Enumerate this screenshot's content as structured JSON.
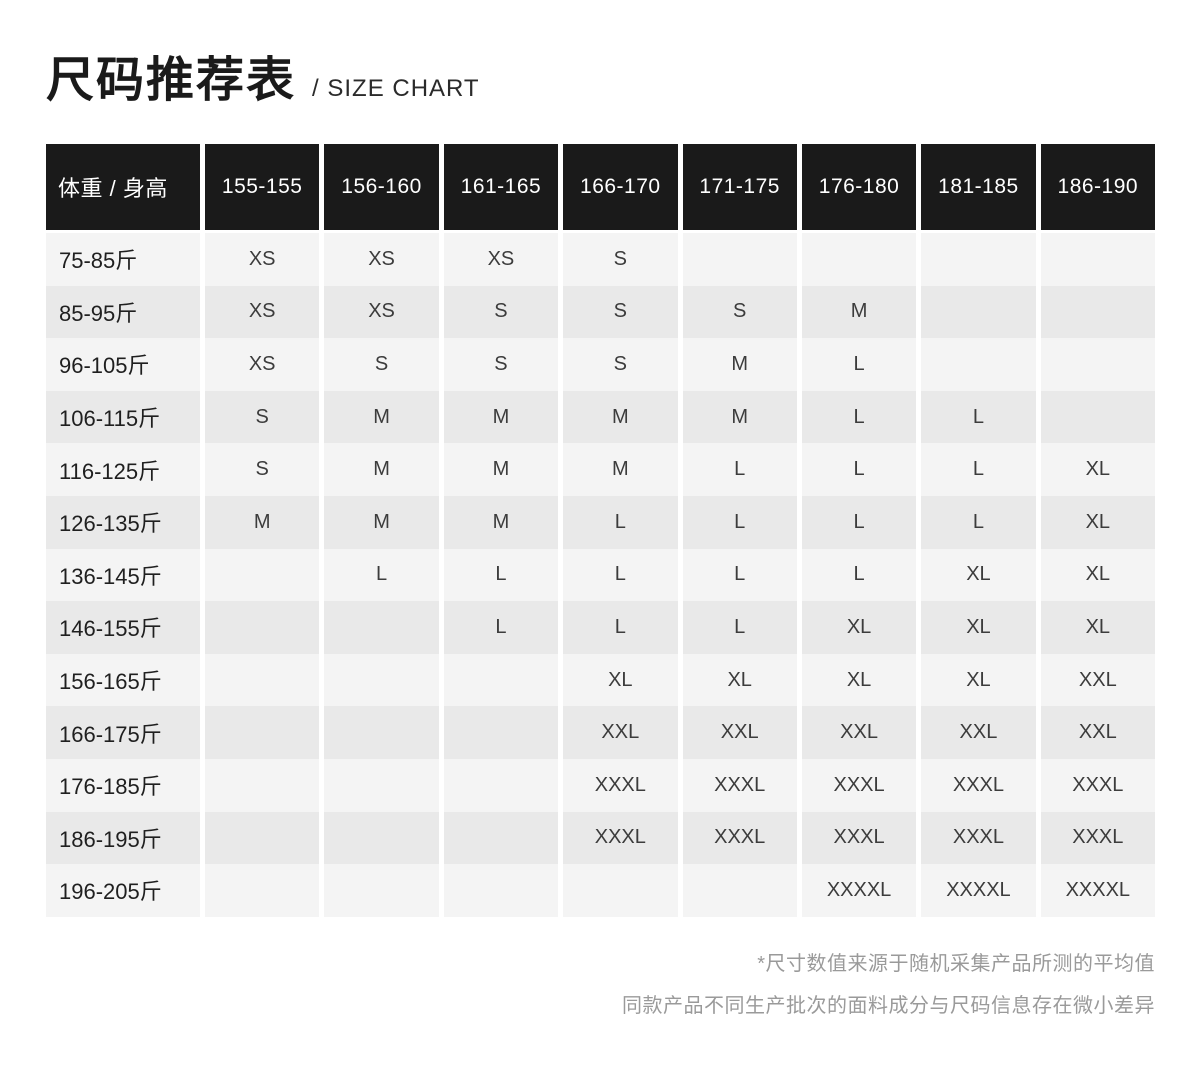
{
  "page": {
    "title": "尺码推荐表",
    "subtitle": "/ SIZE CHART"
  },
  "table": {
    "header": [
      "体重 / 身高",
      "155-155",
      "156-160",
      "161-165",
      "166-170",
      "171-175",
      "176-180",
      "181-185",
      "186-190"
    ],
    "rows": [
      {
        "label": "75-85斤",
        "sizes": [
          "XS",
          "XS",
          "XS",
          "S",
          "",
          "",
          "",
          ""
        ]
      },
      {
        "label": "85-95斤",
        "sizes": [
          "XS",
          "XS",
          "S",
          "S",
          "S",
          "M",
          "",
          ""
        ]
      },
      {
        "label": "96-105斤",
        "sizes": [
          "XS",
          "S",
          "S",
          "S",
          "M",
          "L",
          "",
          ""
        ]
      },
      {
        "label": "106-115斤",
        "sizes": [
          "S",
          "M",
          "M",
          "M",
          "M",
          "L",
          "L",
          ""
        ]
      },
      {
        "label": "116-125斤",
        "sizes": [
          "S",
          "M",
          "M",
          "M",
          "L",
          "L",
          "L",
          "XL"
        ]
      },
      {
        "label": "126-135斤",
        "sizes": [
          "M",
          "M",
          "M",
          "L",
          "L",
          "L",
          "L",
          "XL"
        ]
      },
      {
        "label": "136-145斤",
        "sizes": [
          "",
          "L",
          "L",
          "L",
          "L",
          "L",
          "XL",
          "XL"
        ]
      },
      {
        "label": "146-155斤",
        "sizes": [
          "",
          "",
          "L",
          "L",
          "L",
          "XL",
          "XL",
          "XL"
        ]
      },
      {
        "label": "156-165斤",
        "sizes": [
          "",
          "",
          "",
          "XL",
          "XL",
          "XL",
          "XL",
          "XXL"
        ]
      },
      {
        "label": "166-175斤",
        "sizes": [
          "",
          "",
          "",
          "XXL",
          "XXL",
          "XXL",
          "XXL",
          "XXL"
        ]
      },
      {
        "label": "176-185斤",
        "sizes": [
          "",
          "",
          "",
          "XXXL",
          "XXXL",
          "XXXL",
          "XXXL",
          "XXXL"
        ]
      },
      {
        "label": "186-195斤",
        "sizes": [
          "",
          "",
          "",
          "XXXL",
          "XXXL",
          "XXXL",
          "XXXL",
          "XXXL"
        ]
      },
      {
        "label": "196-205斤",
        "sizes": [
          "",
          "",
          "",
          "",
          "",
          "XXXXL",
          "XXXXL",
          "XXXXL"
        ]
      }
    ]
  },
  "notes": {
    "line1": "*尺寸数值来源于随机采集产品所测的平均值",
    "line2": "同款产品不同生产批次的面料成分与尺码信息存在微小差异"
  },
  "colors": {
    "header_bg": "#1a1a1a",
    "header_text": "#ffffff",
    "row_light": "#f4f4f4",
    "row_dark": "#e9e9e9",
    "note_text": "#9a9a9a"
  }
}
